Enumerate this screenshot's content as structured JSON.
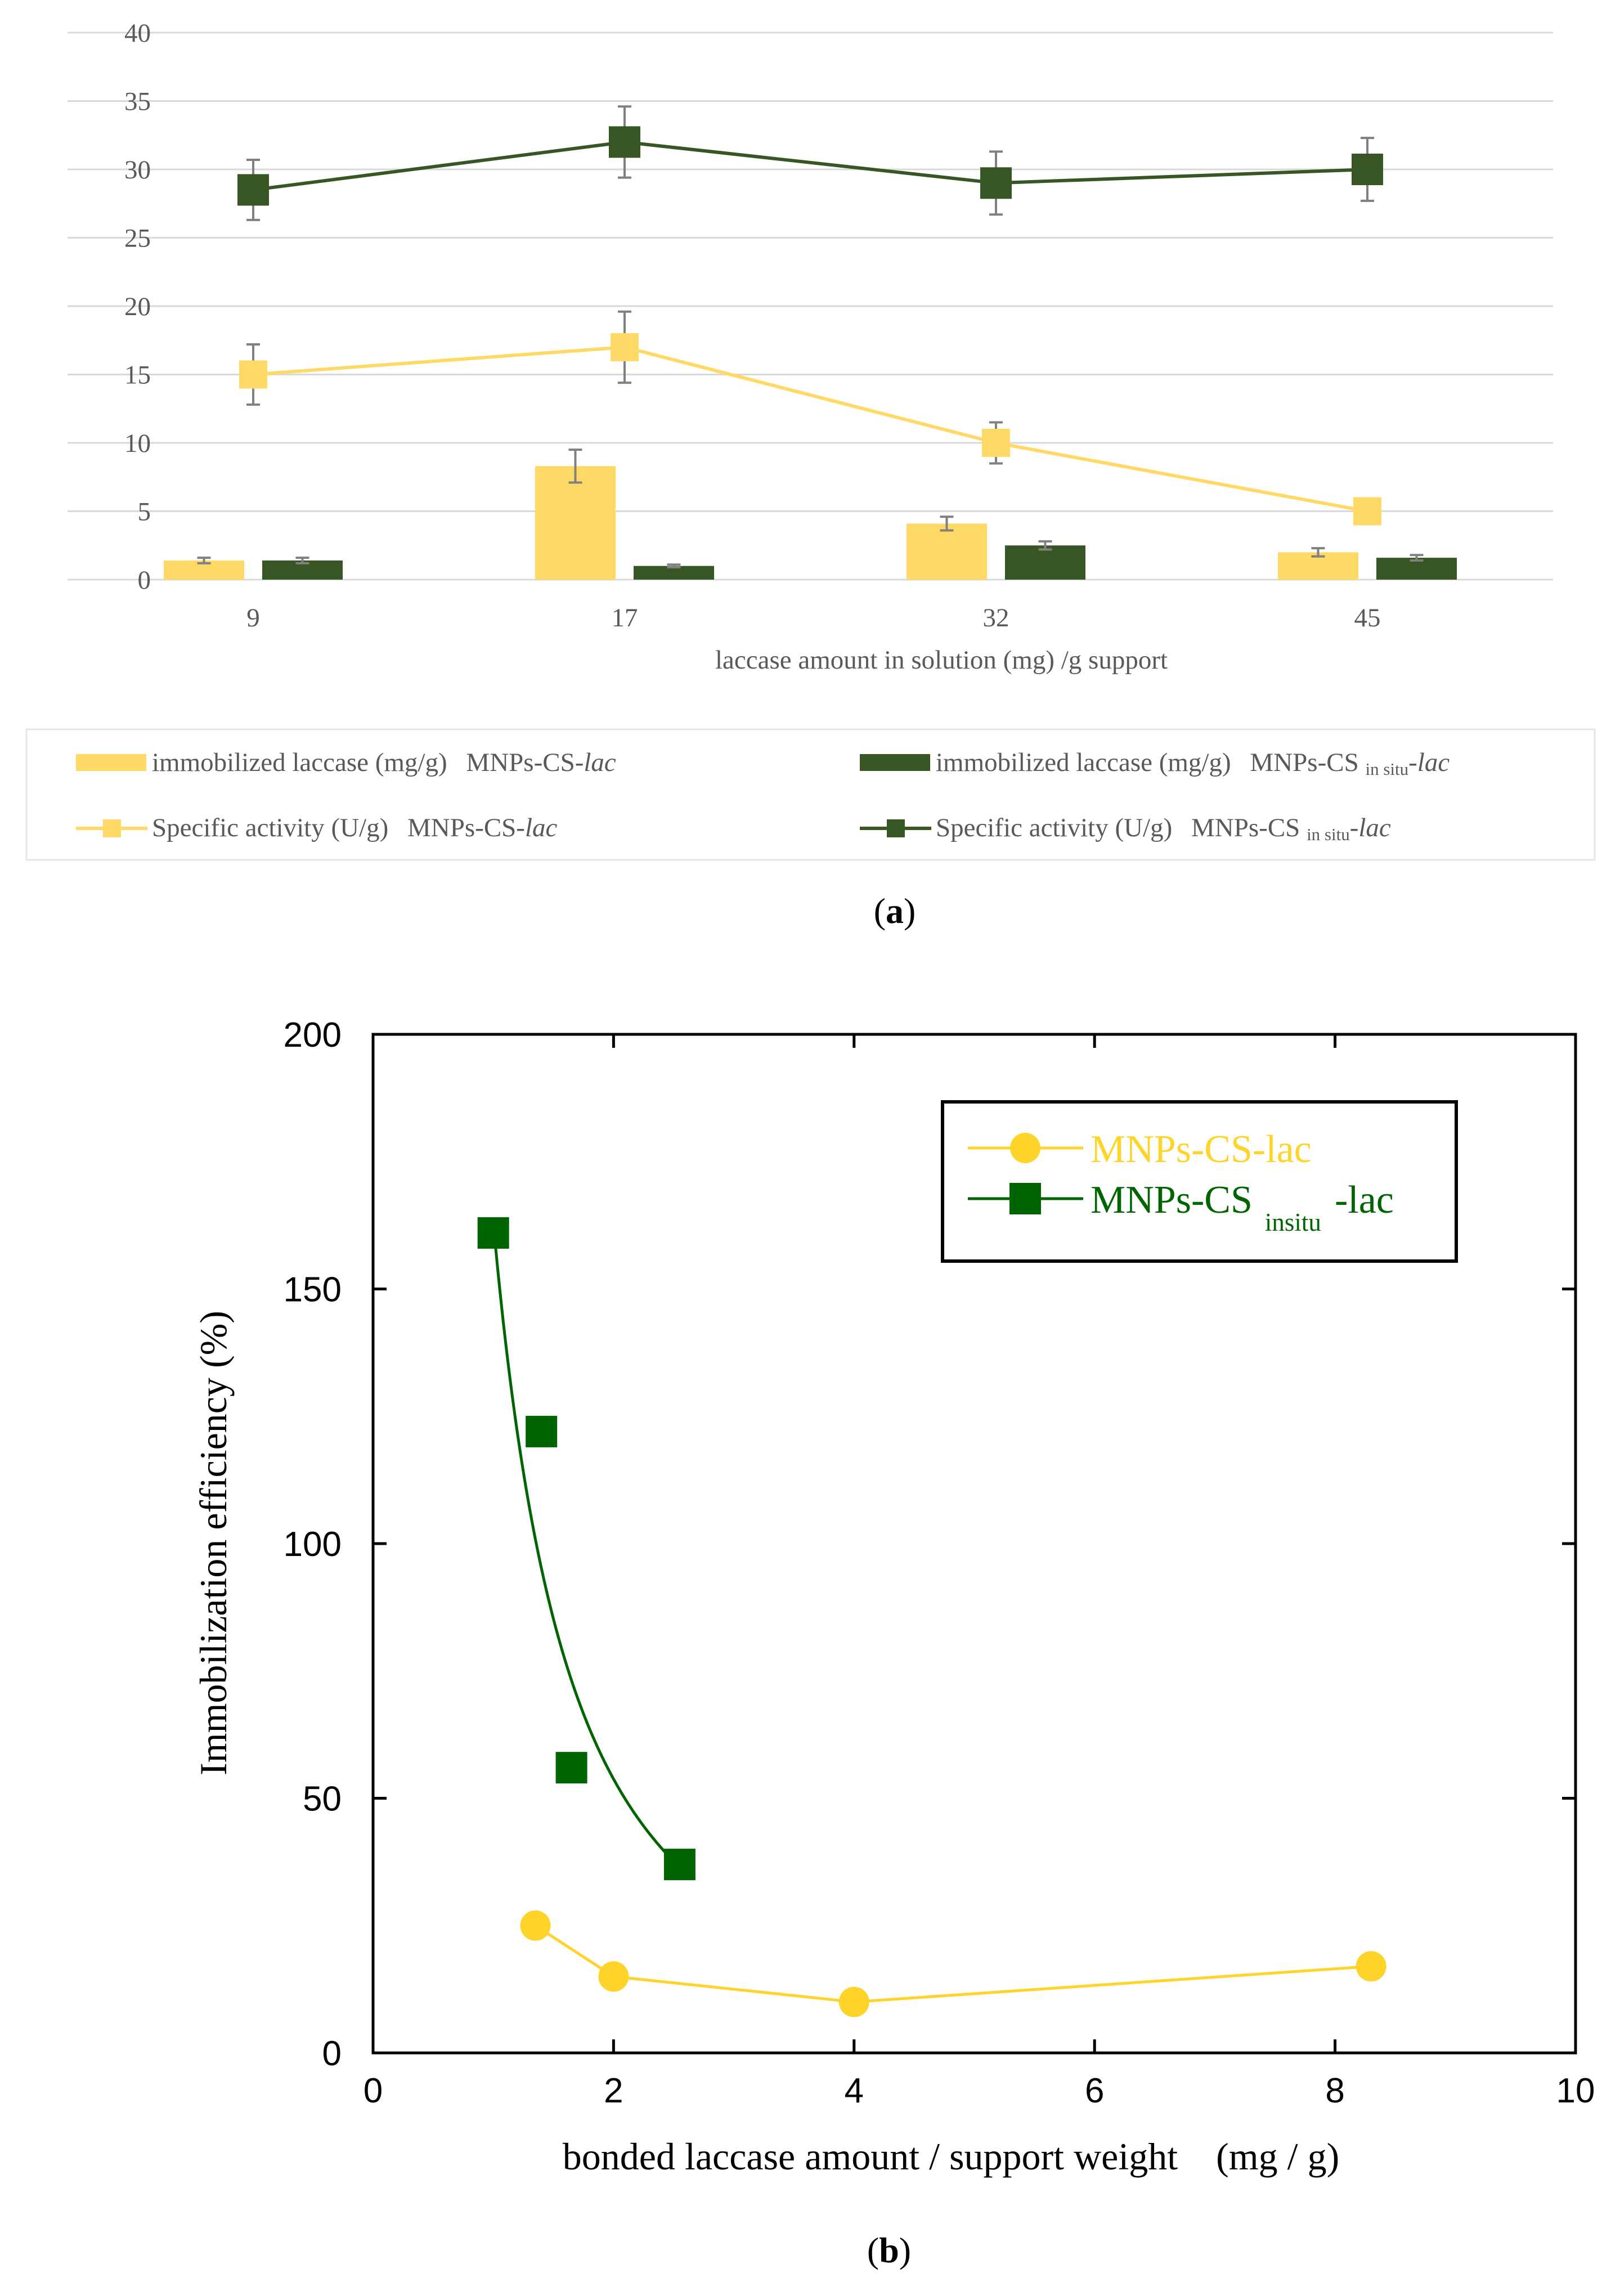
{
  "chart_data": [
    {
      "id": "a",
      "type": "bar+line",
      "caption_letter": "a",
      "categories": [
        "9",
        "17",
        "32",
        "45"
      ],
      "xlabel": "laccase amount in solution (mg) /g support",
      "ylim": [
        0,
        40
      ],
      "yticks": [
        0,
        5,
        10,
        15,
        20,
        25,
        30,
        35,
        40
      ],
      "grid": true,
      "legend_position": "bottom",
      "colors": {
        "yellow": "#FFD966",
        "green": "#375623",
        "errorbar": "#808080",
        "grid": "#D9D9D9"
      },
      "bar_series": [
        {
          "name": "immobilized laccase (mg/g)  MNPs-CS-lac",
          "label_main": "immobilized laccase (mg/g)",
          "label_sample": "MNPs-CS-",
          "label_italic": "lac",
          "label_sub": "",
          "color": "#FFD966",
          "values": [
            1.4,
            8.3,
            4.1,
            2.0
          ],
          "errors": [
            0.2,
            1.2,
            0.5,
            0.3
          ]
        },
        {
          "name": "immobilized laccase (mg/g)  MNPs-CS in situ-lac",
          "label_main": "immobilized laccase (mg/g)",
          "label_sample": "MNPs-CS ",
          "label_sub": "in situ",
          "label_italic": "lac",
          "color": "#375623",
          "values": [
            1.4,
            1.0,
            2.5,
            1.6
          ],
          "errors": [
            0.2,
            0.1,
            0.3,
            0.2
          ]
        }
      ],
      "line_series": [
        {
          "name": "Specific activity (U/g)  MNPs-CS-lac",
          "label_main": "Specific activity (U/g)",
          "label_sample": "MNPs-CS-",
          "label_italic": "lac",
          "label_sub": "",
          "color": "#FFD966",
          "values": [
            15,
            17,
            10,
            5
          ],
          "errors": [
            2.2,
            2.6,
            1.5,
            0
          ]
        },
        {
          "name": "Specific activity (U/g)  MNPs-CS in situ-lac",
          "label_main": "Specific activity (U/g)",
          "label_sample": "MNPs-CS ",
          "label_sub": "in situ",
          "label_italic": "lac",
          "color": "#375623",
          "values": [
            28.5,
            32,
            29,
            30
          ],
          "errors": [
            2.2,
            2.6,
            2.3,
            2.3
          ]
        }
      ]
    },
    {
      "id": "b",
      "type": "scatter+line",
      "caption_letter": "b",
      "xlabel": "bonded laccase amount / support weight    (mg / g)",
      "ylabel": "Immobilization efficiency (%)",
      "xlim": [
        0,
        10
      ],
      "ylim": [
        0,
        200
      ],
      "xticks": [
        0,
        2,
        4,
        6,
        8,
        10
      ],
      "yticks": [
        0,
        50,
        100,
        150,
        200
      ],
      "legend_position": "top-right",
      "series": [
        {
          "name": "MNPs-CS-lac",
          "label": "MNPs-CS-lac",
          "marker": "circle",
          "color": "#FFD42A",
          "x": [
            1.35,
            2.0,
            4.0,
            8.3
          ],
          "y": [
            25,
            15,
            10,
            17
          ]
        },
        {
          "name": "MNPs-CS insitu-lac",
          "label_main": "MNPs-CS",
          "label_sub": "insitu",
          "label_suffix": "-lac",
          "marker": "square",
          "color": "#006400",
          "x": [
            1.0,
            1.4,
            1.65,
            2.55
          ],
          "y": [
            161,
            122,
            56,
            37
          ],
          "fit_curve": {
            "model": "power",
            "a": 163,
            "b": -1.6,
            "x_range": [
              1.0,
              2.6
            ]
          }
        }
      ]
    }
  ]
}
